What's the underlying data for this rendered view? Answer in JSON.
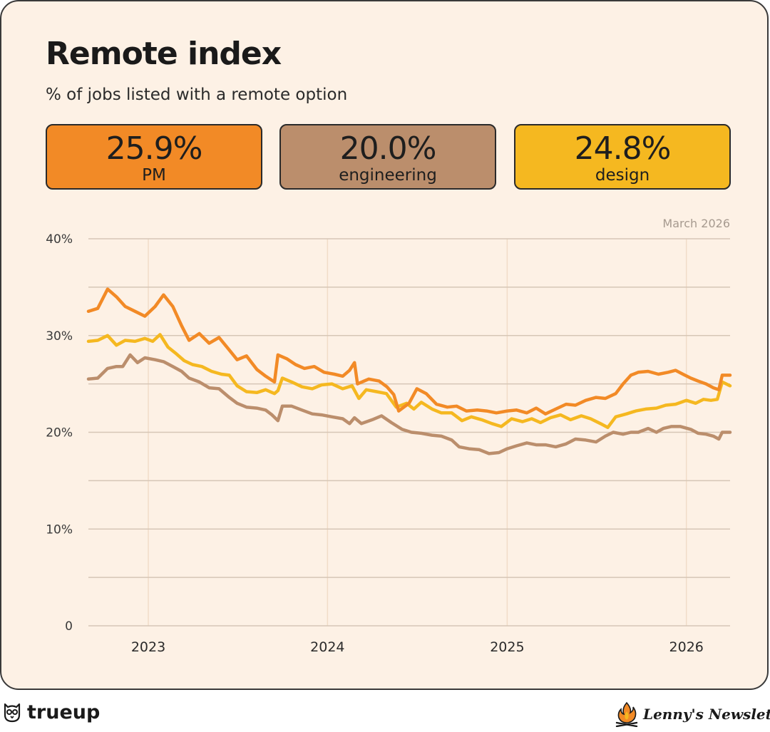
{
  "header": {
    "title": "Remote index",
    "subtitle": "% of jobs listed with a remote option"
  },
  "stats": [
    {
      "value": "25.9%",
      "label": "PM",
      "color": "#f28a26"
    },
    {
      "value": "20.0%",
      "label": "engineering",
      "color": "#bb8e6c"
    },
    {
      "value": "24.8%",
      "label": "design",
      "color": "#f5b820"
    }
  ],
  "date_note": "March 2026",
  "footer": {
    "left_brand": "trueup",
    "right_brand": "Lenny's Newsletter",
    "left_icon": "owl-icon",
    "right_icon": "campfire-icon"
  },
  "chart_data": {
    "type": "line",
    "ylim": [
      0,
      40
    ],
    "xlim": [
      "2022-09-01",
      "2026-03-31"
    ],
    "y_ticks": [
      "0",
      "10%",
      "20%",
      "30%",
      "40%"
    ],
    "y_tick_values": [
      0,
      10,
      20,
      30,
      40
    ],
    "x_ticks": [
      "2023",
      "2024",
      "2025",
      "2026"
    ],
    "x_tick_values": [
      "2023-01-01",
      "2024-01-01",
      "2025-01-01",
      "2026-01-01"
    ],
    "grid": true,
    "series": [
      {
        "name": "PM",
        "color": "#f28a26",
        "points": [
          [
            "2022-09-01",
            32.5
          ],
          [
            "2022-09-20",
            32.8
          ],
          [
            "2022-10-10",
            34.8
          ],
          [
            "2022-10-28",
            34.0
          ],
          [
            "2022-11-15",
            33.0
          ],
          [
            "2022-12-05",
            32.5
          ],
          [
            "2022-12-25",
            32.0
          ],
          [
            "2023-01-15",
            33.0
          ],
          [
            "2023-02-01",
            34.2
          ],
          [
            "2023-02-20",
            33.0
          ],
          [
            "2023-03-10",
            31.0
          ],
          [
            "2023-03-25",
            29.5
          ],
          [
            "2023-04-15",
            30.2
          ],
          [
            "2023-05-05",
            29.2
          ],
          [
            "2023-05-25",
            29.8
          ],
          [
            "2023-06-15",
            28.5
          ],
          [
            "2023-07-01",
            27.5
          ],
          [
            "2023-07-20",
            27.9
          ],
          [
            "2023-08-10",
            26.5
          ],
          [
            "2023-08-28",
            25.8
          ],
          [
            "2023-09-15",
            25.2
          ],
          [
            "2023-09-22",
            28.0
          ],
          [
            "2023-10-10",
            27.6
          ],
          [
            "2023-10-28",
            27.0
          ],
          [
            "2023-11-15",
            26.6
          ],
          [
            "2023-12-05",
            26.8
          ],
          [
            "2023-12-25",
            26.2
          ],
          [
            "2024-01-15",
            26.0
          ],
          [
            "2024-02-01",
            25.8
          ],
          [
            "2024-02-15",
            26.4
          ],
          [
            "2024-02-25",
            27.2
          ],
          [
            "2024-03-02",
            25.0
          ],
          [
            "2024-03-25",
            25.5
          ],
          [
            "2024-04-15",
            25.3
          ],
          [
            "2024-05-01",
            24.7
          ],
          [
            "2024-05-15",
            23.9
          ],
          [
            "2024-05-25",
            22.2
          ],
          [
            "2024-06-15",
            23.0
          ],
          [
            "2024-07-01",
            24.5
          ],
          [
            "2024-07-20",
            24.0
          ],
          [
            "2024-08-10",
            22.9
          ],
          [
            "2024-09-01",
            22.6
          ],
          [
            "2024-09-20",
            22.7
          ],
          [
            "2024-10-10",
            22.2
          ],
          [
            "2024-11-01",
            22.3
          ],
          [
            "2024-11-20",
            22.2
          ],
          [
            "2024-12-10",
            22.0
          ],
          [
            "2025-01-01",
            22.2
          ],
          [
            "2025-01-20",
            22.3
          ],
          [
            "2025-02-10",
            22.0
          ],
          [
            "2025-03-01",
            22.5
          ],
          [
            "2025-03-20",
            21.9
          ],
          [
            "2025-04-10",
            22.4
          ],
          [
            "2025-05-01",
            22.9
          ],
          [
            "2025-05-20",
            22.8
          ],
          [
            "2025-06-10",
            23.3
          ],
          [
            "2025-07-01",
            23.6
          ],
          [
            "2025-07-20",
            23.5
          ],
          [
            "2025-08-10",
            24.0
          ],
          [
            "2025-08-25",
            25.0
          ],
          [
            "2025-09-10",
            25.9
          ],
          [
            "2025-09-25",
            26.2
          ],
          [
            "2025-10-15",
            26.3
          ],
          [
            "2025-11-05",
            26.0
          ],
          [
            "2025-11-25",
            26.2
          ],
          [
            "2025-12-10",
            26.4
          ],
          [
            "2025-12-25",
            26.0
          ],
          [
            "2026-01-10",
            25.6
          ],
          [
            "2026-01-25",
            25.3
          ],
          [
            "2026-02-10",
            25.0
          ],
          [
            "2026-02-25",
            24.6
          ],
          [
            "2026-03-08",
            24.4
          ],
          [
            "2026-03-15",
            25.9
          ],
          [
            "2026-03-31",
            25.9
          ]
        ]
      },
      {
        "name": "engineering",
        "color": "#bb8e6c",
        "points": [
          [
            "2022-09-01",
            25.5
          ],
          [
            "2022-09-20",
            25.6
          ],
          [
            "2022-10-10",
            26.6
          ],
          [
            "2022-10-28",
            26.8
          ],
          [
            "2022-11-10",
            26.8
          ],
          [
            "2022-11-25",
            28.0
          ],
          [
            "2022-12-10",
            27.2
          ],
          [
            "2022-12-25",
            27.7
          ],
          [
            "2023-01-15",
            27.5
          ],
          [
            "2023-02-01",
            27.3
          ],
          [
            "2023-02-20",
            26.8
          ],
          [
            "2023-03-10",
            26.3
          ],
          [
            "2023-03-25",
            25.6
          ],
          [
            "2023-04-15",
            25.2
          ],
          [
            "2023-05-05",
            24.6
          ],
          [
            "2023-05-25",
            24.5
          ],
          [
            "2023-06-15",
            23.6
          ],
          [
            "2023-07-01",
            23.0
          ],
          [
            "2023-07-20",
            22.6
          ],
          [
            "2023-08-10",
            22.5
          ],
          [
            "2023-08-28",
            22.3
          ],
          [
            "2023-09-10",
            21.8
          ],
          [
            "2023-09-22",
            21.2
          ],
          [
            "2023-10-01",
            22.7
          ],
          [
            "2023-10-20",
            22.7
          ],
          [
            "2023-11-10",
            22.3
          ],
          [
            "2023-12-01",
            21.9
          ],
          [
            "2023-12-20",
            21.8
          ],
          [
            "2024-01-10",
            21.6
          ],
          [
            "2024-02-01",
            21.4
          ],
          [
            "2024-02-15",
            20.9
          ],
          [
            "2024-02-25",
            21.5
          ],
          [
            "2024-03-10",
            20.9
          ],
          [
            "2024-04-01",
            21.3
          ],
          [
            "2024-04-20",
            21.7
          ],
          [
            "2024-05-10",
            21.0
          ],
          [
            "2024-06-01",
            20.3
          ],
          [
            "2024-06-20",
            20.0
          ],
          [
            "2024-07-10",
            19.9
          ],
          [
            "2024-08-01",
            19.7
          ],
          [
            "2024-08-20",
            19.6
          ],
          [
            "2024-09-10",
            19.2
          ],
          [
            "2024-09-25",
            18.5
          ],
          [
            "2024-10-15",
            18.3
          ],
          [
            "2024-11-05",
            18.2
          ],
          [
            "2024-11-25",
            17.8
          ],
          [
            "2024-12-15",
            17.9
          ],
          [
            "2025-01-01",
            18.3
          ],
          [
            "2025-01-20",
            18.6
          ],
          [
            "2025-02-10",
            18.9
          ],
          [
            "2025-03-01",
            18.7
          ],
          [
            "2025-03-20",
            18.7
          ],
          [
            "2025-04-10",
            18.5
          ],
          [
            "2025-05-01",
            18.8
          ],
          [
            "2025-05-20",
            19.3
          ],
          [
            "2025-06-10",
            19.2
          ],
          [
            "2025-07-01",
            19.0
          ],
          [
            "2025-07-20",
            19.6
          ],
          [
            "2025-08-05",
            20.0
          ],
          [
            "2025-08-25",
            19.8
          ],
          [
            "2025-09-10",
            20.0
          ],
          [
            "2025-09-25",
            20.0
          ],
          [
            "2025-10-15",
            20.4
          ],
          [
            "2025-11-01",
            20.0
          ],
          [
            "2025-11-15",
            20.4
          ],
          [
            "2025-12-01",
            20.6
          ],
          [
            "2025-12-20",
            20.6
          ],
          [
            "2026-01-10",
            20.3
          ],
          [
            "2026-01-25",
            19.9
          ],
          [
            "2026-02-10",
            19.8
          ],
          [
            "2026-02-25",
            19.6
          ],
          [
            "2026-03-08",
            19.3
          ],
          [
            "2026-03-15",
            20.0
          ],
          [
            "2026-03-31",
            20.0
          ]
        ]
      },
      {
        "name": "design",
        "color": "#f5b820",
        "points": [
          [
            "2022-09-01",
            29.4
          ],
          [
            "2022-09-20",
            29.5
          ],
          [
            "2022-10-10",
            30.0
          ],
          [
            "2022-10-28",
            29.0
          ],
          [
            "2022-11-15",
            29.5
          ],
          [
            "2022-12-05",
            29.4
          ],
          [
            "2022-12-25",
            29.7
          ],
          [
            "2023-01-10",
            29.4
          ],
          [
            "2023-01-25",
            30.1
          ],
          [
            "2023-02-10",
            28.8
          ],
          [
            "2023-02-25",
            28.2
          ],
          [
            "2023-03-15",
            27.4
          ],
          [
            "2023-04-01",
            27.0
          ],
          [
            "2023-04-20",
            26.8
          ],
          [
            "2023-05-10",
            26.3
          ],
          [
            "2023-05-30",
            26.0
          ],
          [
            "2023-06-15",
            25.9
          ],
          [
            "2023-07-01",
            24.8
          ],
          [
            "2023-07-20",
            24.2
          ],
          [
            "2023-08-10",
            24.1
          ],
          [
            "2023-08-28",
            24.4
          ],
          [
            "2023-09-15",
            24.0
          ],
          [
            "2023-09-22",
            24.3
          ],
          [
            "2023-10-01",
            25.6
          ],
          [
            "2023-10-20",
            25.2
          ],
          [
            "2023-11-10",
            24.7
          ],
          [
            "2023-12-01",
            24.5
          ],
          [
            "2023-12-20",
            24.9
          ],
          [
            "2024-01-10",
            25.0
          ],
          [
            "2024-02-01",
            24.5
          ],
          [
            "2024-02-20",
            24.8
          ],
          [
            "2024-03-05",
            23.5
          ],
          [
            "2024-03-20",
            24.4
          ],
          [
            "2024-04-10",
            24.2
          ],
          [
            "2024-04-30",
            24.0
          ],
          [
            "2024-05-20",
            22.6
          ],
          [
            "2024-06-10",
            23.0
          ],
          [
            "2024-06-25",
            22.4
          ],
          [
            "2024-07-10",
            23.1
          ],
          [
            "2024-08-01",
            22.4
          ],
          [
            "2024-08-20",
            22.0
          ],
          [
            "2024-09-10",
            22.0
          ],
          [
            "2024-10-01",
            21.2
          ],
          [
            "2024-10-20",
            21.6
          ],
          [
            "2024-11-10",
            21.3
          ],
          [
            "2024-12-01",
            20.9
          ],
          [
            "2024-12-20",
            20.6
          ],
          [
            "2025-01-10",
            21.4
          ],
          [
            "2025-02-01",
            21.1
          ],
          [
            "2025-02-20",
            21.4
          ],
          [
            "2025-03-10",
            21.0
          ],
          [
            "2025-03-30",
            21.5
          ],
          [
            "2025-04-20",
            21.8
          ],
          [
            "2025-05-10",
            21.3
          ],
          [
            "2025-06-01",
            21.7
          ],
          [
            "2025-06-20",
            21.4
          ],
          [
            "2025-07-10",
            20.9
          ],
          [
            "2025-07-25",
            20.5
          ],
          [
            "2025-08-10",
            21.6
          ],
          [
            "2025-09-01",
            21.9
          ],
          [
            "2025-09-20",
            22.2
          ],
          [
            "2025-10-10",
            22.4
          ],
          [
            "2025-11-01",
            22.5
          ],
          [
            "2025-11-20",
            22.8
          ],
          [
            "2025-12-10",
            22.9
          ],
          [
            "2026-01-01",
            23.3
          ],
          [
            "2026-01-20",
            23.0
          ],
          [
            "2026-02-05",
            23.4
          ],
          [
            "2026-02-20",
            23.3
          ],
          [
            "2026-03-05",
            23.4
          ],
          [
            "2026-03-15",
            25.2
          ],
          [
            "2026-03-31",
            24.8
          ]
        ]
      }
    ]
  }
}
